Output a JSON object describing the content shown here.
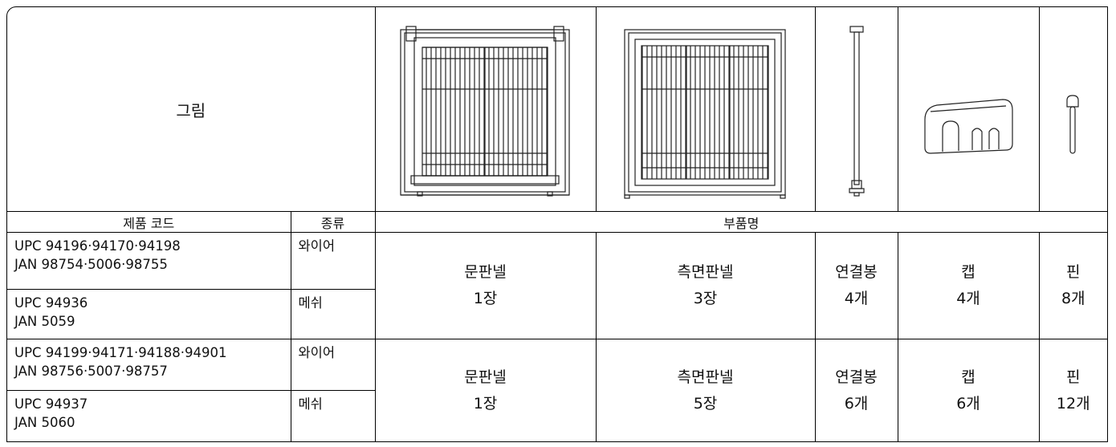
{
  "header": {
    "picture_label": "그림",
    "product_code": "제품 코드",
    "type": "종류",
    "part_name": "부품명"
  },
  "groups": [
    {
      "products": [
        {
          "codes": [
            "UPC 94196·94170·94198",
            "JAN 98754·5006·98755"
          ],
          "type": "와이어"
        },
        {
          "codes": [
            "UPC 94936",
            "JAN 5059"
          ],
          "type": "메쉬"
        }
      ],
      "parts": [
        {
          "name": "문판넬",
          "qty": "1장"
        },
        {
          "name": "측면판넬",
          "qty": "3장"
        },
        {
          "name": "연결봉",
          "qty": "4개"
        },
        {
          "name": "캡",
          "qty": "4개"
        },
        {
          "name": "핀",
          "qty": "8개"
        }
      ]
    },
    {
      "products": [
        {
          "codes": [
            "UPC 94199·94171·94188·94901",
            "JAN 98756·5007·98757"
          ],
          "type": "와이어"
        },
        {
          "codes": [
            "UPC 94937",
            "JAN 5060"
          ],
          "type": "메쉬"
        }
      ],
      "parts": [
        {
          "name": "문판넬",
          "qty": "1장"
        },
        {
          "name": "측면판넬",
          "qty": "5장"
        },
        {
          "name": "연결봉",
          "qty": "6개"
        },
        {
          "name": "캡",
          "qty": "6개"
        },
        {
          "name": "핀",
          "qty": "12개"
        }
      ]
    }
  ]
}
